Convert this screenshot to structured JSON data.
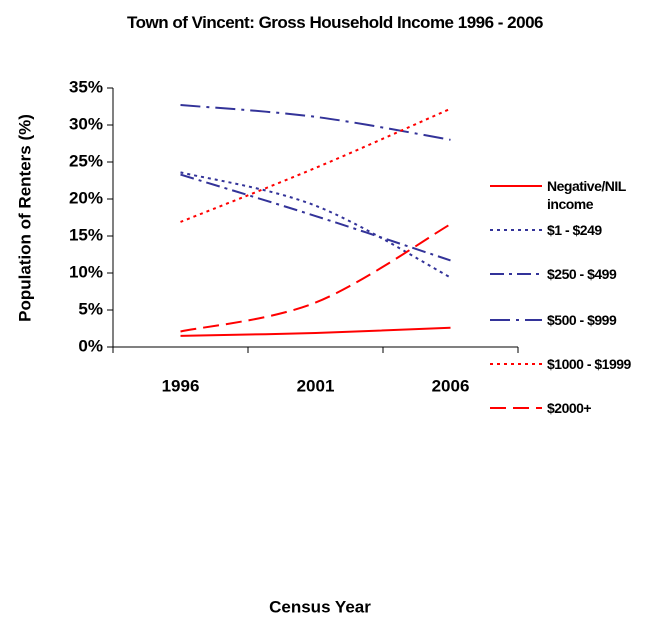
{
  "chart_data": {
    "type": "line",
    "title": "Town of Vincent: Gross Household Income 1996 - 2006",
    "x_label": "Census Year",
    "y_label": "Population of Renters (%)",
    "categories": [
      "1996",
      "2001",
      "2006"
    ],
    "ylim": [
      0,
      35
    ],
    "yticks": [
      {
        "value": 0,
        "label": "0%"
      },
      {
        "value": 5,
        "label": "5%"
      },
      {
        "value": 10,
        "label": "10%"
      },
      {
        "value": 15,
        "label": "15%"
      },
      {
        "value": 20,
        "label": "20%"
      },
      {
        "value": 25,
        "label": "25%"
      },
      {
        "value": 30,
        "label": "30%"
      },
      {
        "value": 35,
        "label": "35%"
      }
    ],
    "grid": false,
    "legend": "right",
    "series": [
      {
        "name": "Negative/NIL income",
        "color": "#ff0000",
        "dash": "solid",
        "values": [
          1.5,
          1.9,
          2.6
        ]
      },
      {
        "name": "$1 - $249",
        "color": "#333399",
        "dash": "dot",
        "values": [
          23.6,
          19.1,
          9.4
        ]
      },
      {
        "name": "$250 - $499",
        "color": "#333399",
        "dash": "dashDot",
        "values": [
          23.3,
          17.7,
          11.7
        ]
      },
      {
        "name": "$500 - $999",
        "color": "#333399",
        "dash": "longDashDot",
        "values": [
          32.7,
          31.1,
          28.0
        ]
      },
      {
        "name": "$1000 - $1999",
        "color": "#ff0000",
        "dash": "dot",
        "values": [
          16.9,
          24.2,
          32.2
        ]
      },
      {
        "name": "$2000+",
        "color": "#ff0000",
        "dash": "dash",
        "values": [
          2.1,
          6.0,
          16.6
        ]
      }
    ]
  }
}
